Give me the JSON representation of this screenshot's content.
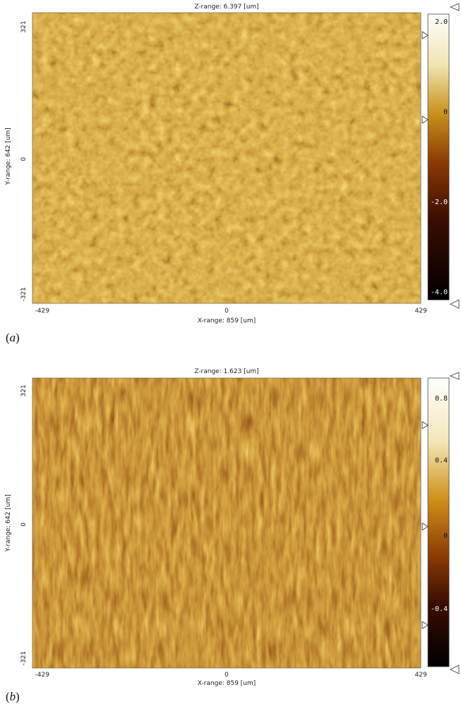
{
  "panels": [
    {
      "z_range": "Z-range:  6.397 [um]",
      "y_range": "Y-range:  642 [um]",
      "x_range": "X-range:  859 [um]",
      "y_ticks": [
        "321",
        "0",
        "-321"
      ],
      "x_ticks": [
        "-429",
        "0",
        "429"
      ],
      "scale_ticks": [
        "2.0",
        "0",
        "-2.0",
        "-4.0"
      ],
      "caption_open": "(",
      "caption_letter": "a",
      "caption_close": ")"
    },
    {
      "z_range": "Z-range:  1.623 [um]",
      "y_range": "Y-range:  642 [um]",
      "x_range": "X-range:  859 [um]",
      "y_ticks": [
        "321",
        "0",
        "-321"
      ],
      "x_ticks": [
        "-429",
        "0",
        "429"
      ],
      "scale_ticks": [
        "0.8",
        "0.4",
        "0",
        "-0.4"
      ],
      "caption_open": "(",
      "caption_letter": "b",
      "caption_close": ")"
    }
  ],
  "colors": {
    "scale_top": "#ffffff",
    "scale_gold": "#d59a1a",
    "scale_brown": "#8a3a05",
    "scale_dark": "#3a0d00",
    "scale_black": "#000000"
  }
}
